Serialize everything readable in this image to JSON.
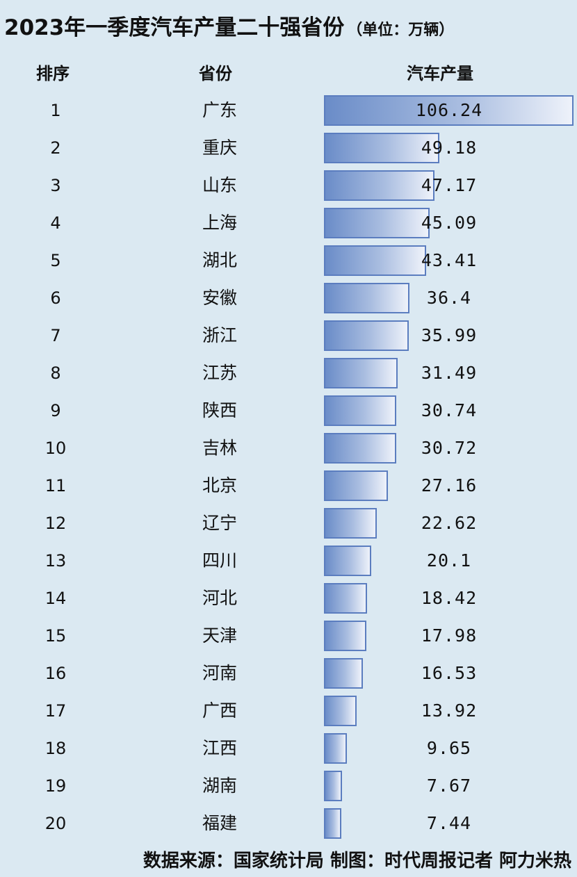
{
  "title": "2023年一季度汽车产量二十强省份",
  "unit": "（单位：万辆）",
  "headers": {
    "rank": "排序",
    "province": "省份",
    "production": "汽车产量"
  },
  "footer": "数据来源：国家统计局 制图：时代周报记者 阿力米热",
  "colors": {
    "background": "#dbe9f2",
    "bar_fill": "#6a8cc8",
    "bar_border": "#5b7dbf"
  },
  "chart_data": {
    "type": "bar",
    "orientation": "horizontal",
    "title": "2023年一季度汽车产量二十强省份",
    "unit": "万辆",
    "xlim": [
      0,
      106.24
    ],
    "rows": [
      {
        "rank": "1",
        "province": "广东",
        "value": 106.24,
        "label": "106.24"
      },
      {
        "rank": "2",
        "province": "重庆",
        "value": 49.18,
        "label": "49.18"
      },
      {
        "rank": "3",
        "province": "山东",
        "value": 47.17,
        "label": "47.17"
      },
      {
        "rank": "4",
        "province": "上海",
        "value": 45.09,
        "label": "45.09"
      },
      {
        "rank": "5",
        "province": "湖北",
        "value": 43.41,
        "label": "43.41"
      },
      {
        "rank": "6",
        "province": "安徽",
        "value": 36.4,
        "label": "36.4"
      },
      {
        "rank": "7",
        "province": "浙江",
        "value": 35.99,
        "label": "35.99"
      },
      {
        "rank": "8",
        "province": "江苏",
        "value": 31.49,
        "label": "31.49"
      },
      {
        "rank": "9",
        "province": "陕西",
        "value": 30.74,
        "label": "30.74"
      },
      {
        "rank": "10",
        "province": "吉林",
        "value": 30.72,
        "label": "30.72"
      },
      {
        "rank": "11",
        "province": "北京",
        "value": 27.16,
        "label": "27.16"
      },
      {
        "rank": "12",
        "province": "辽宁",
        "value": 22.62,
        "label": "22.62"
      },
      {
        "rank": "13",
        "province": "四川",
        "value": 20.1,
        "label": "20.1"
      },
      {
        "rank": "14",
        "province": "河北",
        "value": 18.42,
        "label": "18.42"
      },
      {
        "rank": "15",
        "province": "天津",
        "value": 17.98,
        "label": "17.98"
      },
      {
        "rank": "16",
        "province": "河南",
        "value": 16.53,
        "label": "16.53"
      },
      {
        "rank": "17",
        "province": "广西",
        "value": 13.92,
        "label": "13.92"
      },
      {
        "rank": "18",
        "province": "江西",
        "value": 9.65,
        "label": "9.65"
      },
      {
        "rank": "19",
        "province": "湖南",
        "value": 7.67,
        "label": "7.67"
      },
      {
        "rank": "20",
        "province": "福建",
        "value": 7.44,
        "label": "7.44"
      }
    ]
  }
}
